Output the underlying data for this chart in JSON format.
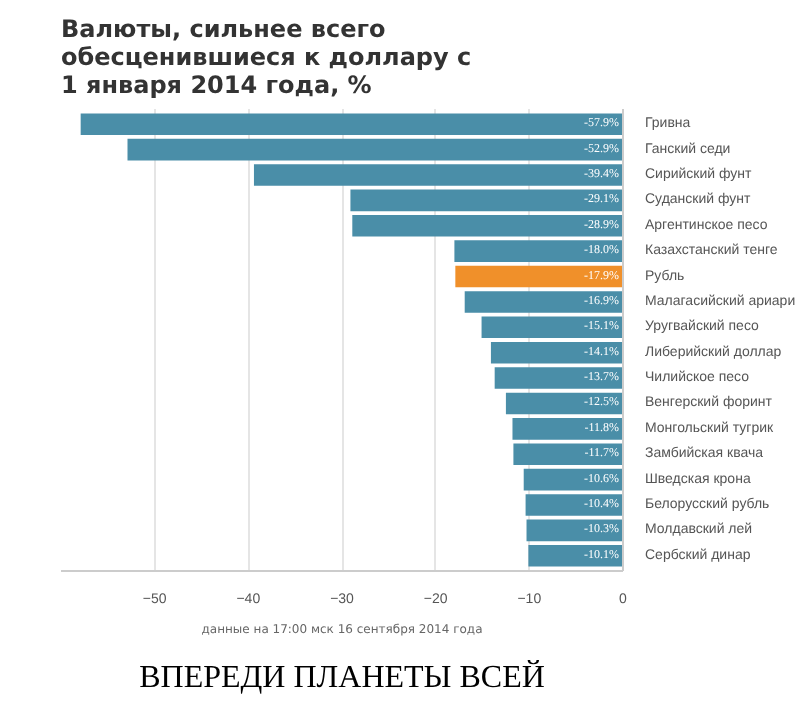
{
  "chart_data": {
    "type": "bar",
    "orientation": "horizontal",
    "title": "Валюты, сильнее всего\nобесценившиеся к доллару с\n1 января 2014 года, %",
    "categories": [
      "Гривна",
      "Ганский седи",
      "Сирийский фунт",
      "Суданский фунт",
      "Аргентинское песо",
      "Казахстанский тенге",
      "Рубль",
      "Малагасийский ариари",
      "Уругвайский песо",
      "Либерийский доллар",
      "Чилийское песо",
      "Венгерский форинт",
      "Монгольский тугрик",
      "Замбийская квача",
      "Шведская крона",
      "Белорусский рубль",
      "Молдавский лей",
      "Сербский динар"
    ],
    "values": [
      -57.9,
      -52.9,
      -39.4,
      -29.1,
      -28.9,
      -18.0,
      -17.9,
      -16.9,
      -15.1,
      -14.1,
      -13.7,
      -12.5,
      -11.8,
      -11.7,
      -10.6,
      -10.4,
      -10.3,
      -10.1
    ],
    "value_labels": [
      "-57.9%",
      "-52.9%",
      "-39.4%",
      "-29.1%",
      "-28.9%",
      "-18.0%",
      "-17.9%",
      "-16.9%",
      "-15.1%",
      "-14.1%",
      "-13.7%",
      "-12.5%",
      "-11.8%",
      "-11.7%",
      "-10.6%",
      "-10.4%",
      "-10.3%",
      "-10.1%"
    ],
    "colors": [
      "#4a8ea8",
      "#4a8ea8",
      "#4a8ea8",
      "#4a8ea8",
      "#4a8ea8",
      "#4a8ea8",
      "#f0902a",
      "#4a8ea8",
      "#4a8ea8",
      "#4a8ea8",
      "#4a8ea8",
      "#4a8ea8",
      "#4a8ea8",
      "#4a8ea8",
      "#4a8ea8",
      "#4a8ea8",
      "#4a8ea8",
      "#4a8ea8"
    ],
    "xlim": [
      -60,
      0
    ],
    "xticks": [
      -50,
      -40,
      -30,
      -20,
      -10,
      0
    ],
    "grid": "x",
    "annotations": [
      "данные на 17:00 мск 16 сентября 2014 года",
      "ВПЕРЕДИ ПЛАНЕТЫ ВСЕЙ"
    ]
  }
}
